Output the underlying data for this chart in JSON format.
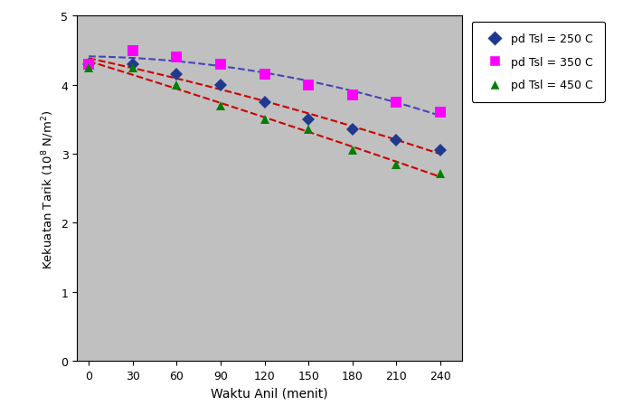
{
  "x": [
    0,
    30,
    60,
    90,
    120,
    150,
    180,
    210,
    240
  ],
  "y_250": [
    4.3,
    4.3,
    4.15,
    4.0,
    3.75,
    3.5,
    3.35,
    3.2,
    3.05
  ],
  "y_350": [
    4.3,
    4.5,
    4.4,
    4.3,
    4.15,
    4.0,
    3.85,
    3.75,
    3.6
  ],
  "y_450": [
    4.25,
    4.25,
    4.0,
    3.7,
    3.5,
    3.35,
    3.05,
    2.85,
    2.72
  ],
  "xlabel": "Waktu Anil (menit)",
  "ylabel": "Kekuatan Tarik (10 8 N/m 2)",
  "ylim": [
    0,
    5
  ],
  "xlim": [
    -8,
    255
  ],
  "xticks": [
    0,
    30,
    60,
    90,
    120,
    150,
    180,
    210,
    240
  ],
  "yticks": [
    0,
    1,
    2,
    3,
    4,
    5
  ],
  "color_250": "#1F3A8F",
  "color_350": "#FF00FF",
  "color_450": "#008000",
  "line_color_250": "#CC0000",
  "line_color_350": "#4444BB",
  "line_color_450": "#CC0000",
  "legend_250": "pd Tsl = 250 C",
  "legend_350": "pd Tsl = 350 C",
  "legend_450": "pd Tsl = 450 C",
  "bg_color": "#C0C0C0",
  "fig_bg": "#FFFFFF"
}
